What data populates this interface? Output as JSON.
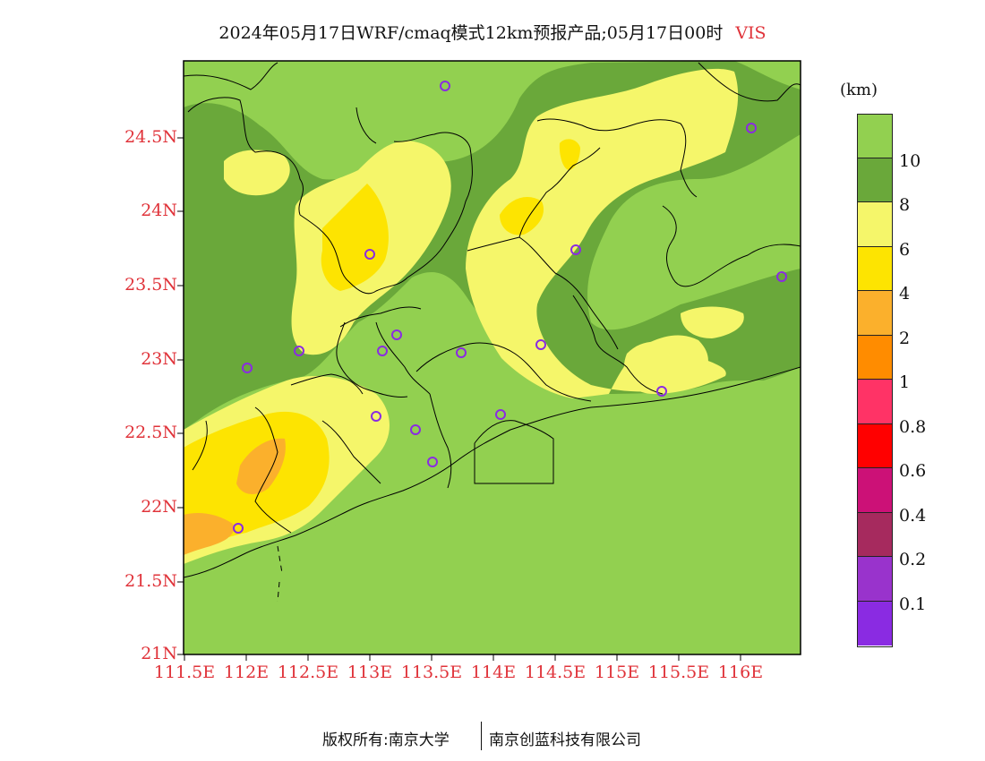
{
  "title": {
    "main": "2024年05月17日WRF/cmaq模式12km预报产品;05月17日00时",
    "variable": "VIS"
  },
  "axes": {
    "y_labels": [
      "24.5N",
      "24N",
      "23.5N",
      "23N",
      "22.5N",
      "22N",
      "21.5N",
      "21N"
    ],
    "x_labels": [
      "111.5E",
      "112E",
      "112.5E",
      "113E",
      "113.5E",
      "114E",
      "114.5E",
      "115E",
      "115.5E",
      "116E"
    ]
  },
  "legend": {
    "unit": "(km)",
    "labels": [
      "10",
      "8",
      "6",
      "4",
      "2",
      "1",
      "0.8",
      "0.6",
      "0.4",
      "0.2",
      "0.1"
    ],
    "colors": [
      "#92d050",
      "#6aa83a",
      "#f5f66a",
      "#fde401",
      "#fbb02c",
      "#ff8c00",
      "#ff3366",
      "#ff0000",
      "#cc1177",
      "#a62a5e",
      "#9933cc",
      "#8a2be2"
    ]
  },
  "colors": {
    "marker": "#8a2be2",
    "boundary": "#000000"
  },
  "footer": {
    "left": "版权所有:南京大学",
    "right": "南京创蓝科技有限公司"
  }
}
